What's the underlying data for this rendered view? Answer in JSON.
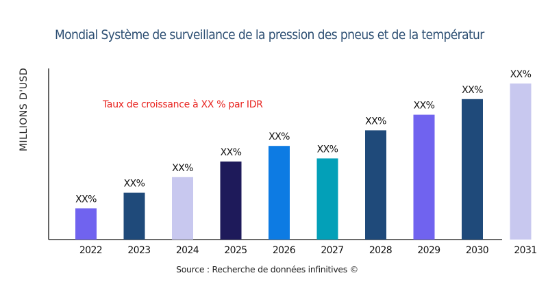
{
  "chart_data": {
    "type": "bar",
    "title": "Mondial Système de surveillance de la pression des pneus et de la températur",
    "ylabel": "MILLIONS D'USD",
    "xlabel": "",
    "categories": [
      "2022",
      "2023",
      "2024",
      "2025",
      "2026",
      "2027",
      "2028",
      "2029",
      "2030",
      "2031"
    ],
    "values": [
      20,
      30,
      40,
      50,
      60,
      52,
      70,
      80,
      90,
      100
    ],
    "data_labels": [
      "XX%",
      "XX%",
      "XX%",
      "XX%",
      "XX%",
      "XX%",
      "XX%",
      "XX%",
      "XX%",
      "XX%"
    ],
    "colors": [
      "#7063ef",
      "#1f4a7a",
      "#c8c8ef",
      "#1e1a5a",
      "#0d7be3",
      "#03a0b8",
      "#1f4a7a",
      "#7063ef",
      "#1f4a7a",
      "#c8c8ef"
    ],
    "ylim": [
      0,
      100
    ],
    "grid": false,
    "annotation": "Taux de croissance à XX % par IDR",
    "source": "Source : Recherche de données infinitives ©"
  }
}
